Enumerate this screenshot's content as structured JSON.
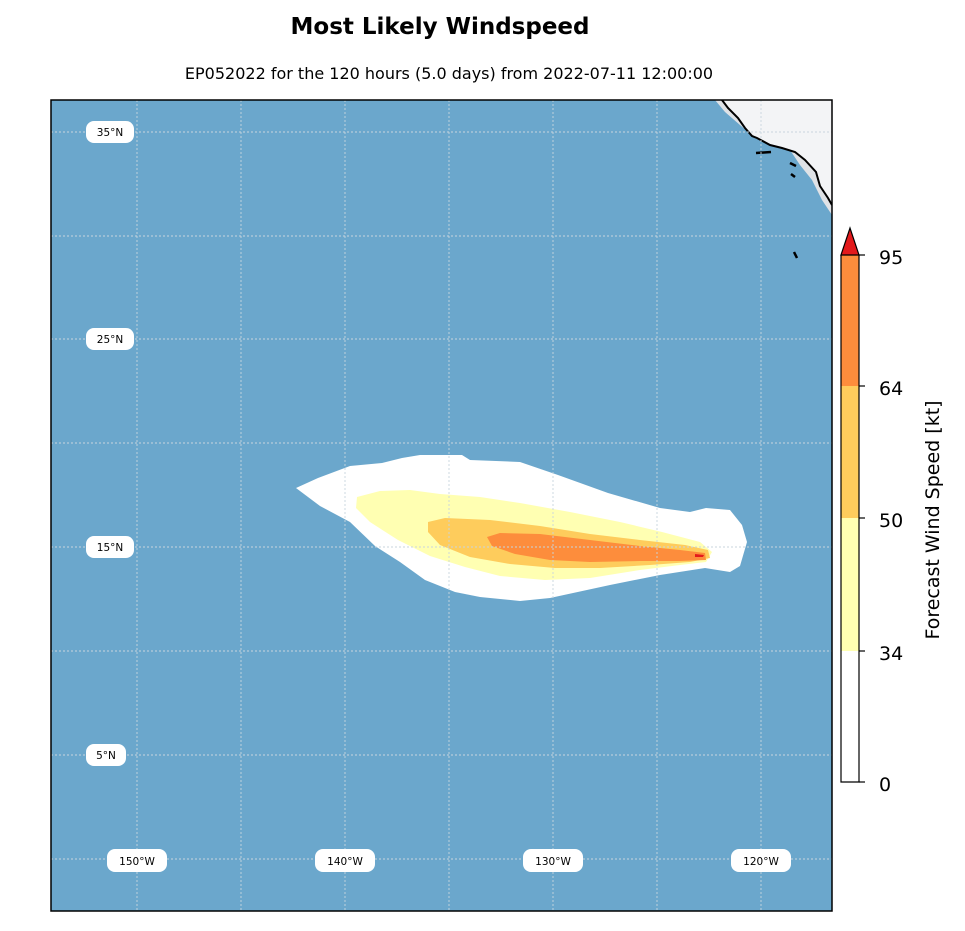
{
  "title": "Most Likely Windspeed",
  "subtitle": "EP052022 for the 120 hours (5.0 days) from 2022-07-11 12:00:00",
  "map": {
    "ocean_color": "#6ba7cc",
    "land_color": "#f3f4f6",
    "lat_labels": [
      "35°N",
      "25°N",
      "15°N",
      "5°N"
    ],
    "lon_labels": [
      "150°W",
      "140°W",
      "130°W",
      "120°W"
    ]
  },
  "wind_field": {
    "levels_kt": [
      0,
      34,
      50,
      64,
      95
    ],
    "colors": [
      "#ffffff",
      "#ffffb2",
      "#fecc5c",
      "#fd8d3c",
      "#e31a1c"
    ]
  },
  "colorbar": {
    "label": "Forecast Wind Speed [kt]",
    "ticks": [
      "0",
      "34",
      "50",
      "64",
      "95"
    ],
    "extend": "max"
  }
}
